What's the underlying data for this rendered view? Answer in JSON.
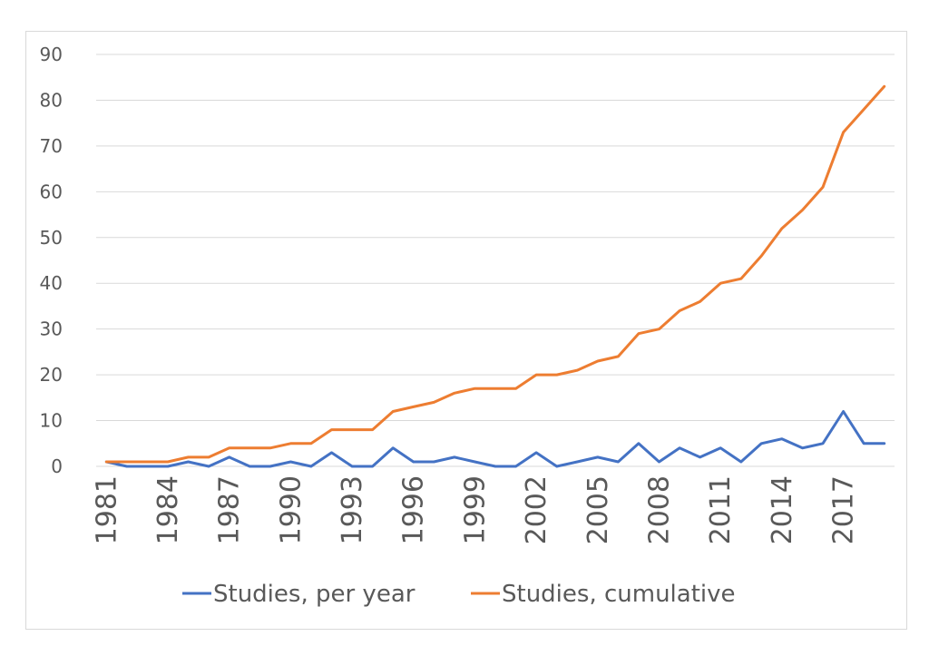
{
  "chart_data": {
    "type": "line",
    "title": "",
    "xlabel": "",
    "ylabel": "",
    "ylim": [
      0,
      90
    ],
    "y_ticks": [
      0,
      10,
      20,
      30,
      40,
      50,
      60,
      70,
      80,
      90
    ],
    "x": [
      1981,
      1982,
      1983,
      1984,
      1985,
      1986,
      1987,
      1988,
      1989,
      1990,
      1991,
      1992,
      1993,
      1994,
      1995,
      1996,
      1997,
      1998,
      1999,
      2000,
      2001,
      2002,
      2003,
      2004,
      2005,
      2006,
      2007,
      2008,
      2009,
      2010,
      2011,
      2012,
      2013,
      2014,
      2015,
      2016,
      2017,
      2018,
      2019
    ],
    "x_tick_labels": [
      "1981",
      "1984",
      "1987",
      "1990",
      "1993",
      "1996",
      "1999",
      "2002",
      "2005",
      "2008",
      "2011",
      "2014",
      "2017"
    ],
    "grid": true,
    "legend_position": "bottom",
    "series": [
      {
        "name": "Studies, per year",
        "color": "#4472c4",
        "values": [
          1,
          0,
          0,
          0,
          1,
          0,
          2,
          0,
          0,
          1,
          0,
          3,
          0,
          0,
          4,
          1,
          1,
          2,
          1,
          0,
          0,
          3,
          0,
          1,
          2,
          1,
          5,
          1,
          4,
          2,
          4,
          1,
          5,
          6,
          4,
          5,
          12,
          5,
          5
        ]
      },
      {
        "name": "Studies, cumulative",
        "color": "#ed7d31",
        "values": [
          1,
          1,
          1,
          1,
          2,
          2,
          4,
          4,
          4,
          5,
          5,
          8,
          8,
          8,
          12,
          13,
          14,
          16,
          17,
          17,
          17,
          20,
          20,
          21,
          23,
          24,
          29,
          30,
          34,
          36,
          40,
          41,
          46,
          52,
          56,
          61,
          73,
          78,
          83
        ]
      }
    ]
  }
}
